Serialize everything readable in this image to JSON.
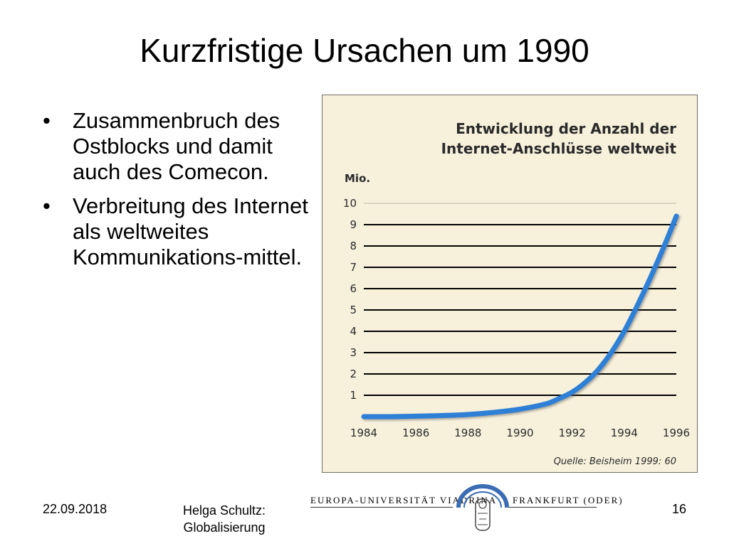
{
  "slide": {
    "title": "Kurzfristige Ursachen um 1990",
    "bullets": [
      "Zusammenbruch des Ostblocks und damit auch des Comecon.",
      "Verbreitung des Internet als weltweites Kommunikations-mittel."
    ]
  },
  "footer": {
    "date": "22.09.2018",
    "author_line1": "Helga Schultz:",
    "author_line2": "Globalisierung",
    "page": "16",
    "university_left": "EUROPA-UNIVERSITÄT VIADRINA",
    "university_right": "FRANKFURT (ODER)"
  },
  "colors": {
    "background": "#f7f1dc",
    "curve": "#2f7fd6",
    "gridline": "#000000",
    "seal_arc": "#3b6db3"
  },
  "chart_data": {
    "type": "line",
    "title_line1": "Entwicklung der Anzahl der",
    "title_line2": "Internet-Anschlüsse weltweit",
    "ylabel": "Mio.",
    "xlabel": "",
    "source": "Quelle: Beisheim 1999: 60",
    "xlim": [
      1984,
      1996
    ],
    "ylim": [
      0,
      10
    ],
    "xticks": [
      "1984",
      "1986",
      "1988",
      "1990",
      "1992",
      "1994",
      "1996"
    ],
    "yticks": [
      "1",
      "2",
      "3",
      "4",
      "5",
      "6",
      "7",
      "8",
      "9",
      "10"
    ],
    "grid": true,
    "series": [
      {
        "x": [
          1984,
          1985,
          1986,
          1987,
          1988,
          1989,
          1990,
          1991,
          1991.5,
          1992,
          1992.5,
          1993,
          1993.5,
          1994,
          1994.5,
          1995,
          1995.5,
          1996
        ],
        "values": [
          0.0,
          0.0,
          0.02,
          0.05,
          0.1,
          0.2,
          0.35,
          0.6,
          0.85,
          1.15,
          1.6,
          2.2,
          3.0,
          4.0,
          5.2,
          6.5,
          7.9,
          9.4
        ]
      }
    ]
  }
}
